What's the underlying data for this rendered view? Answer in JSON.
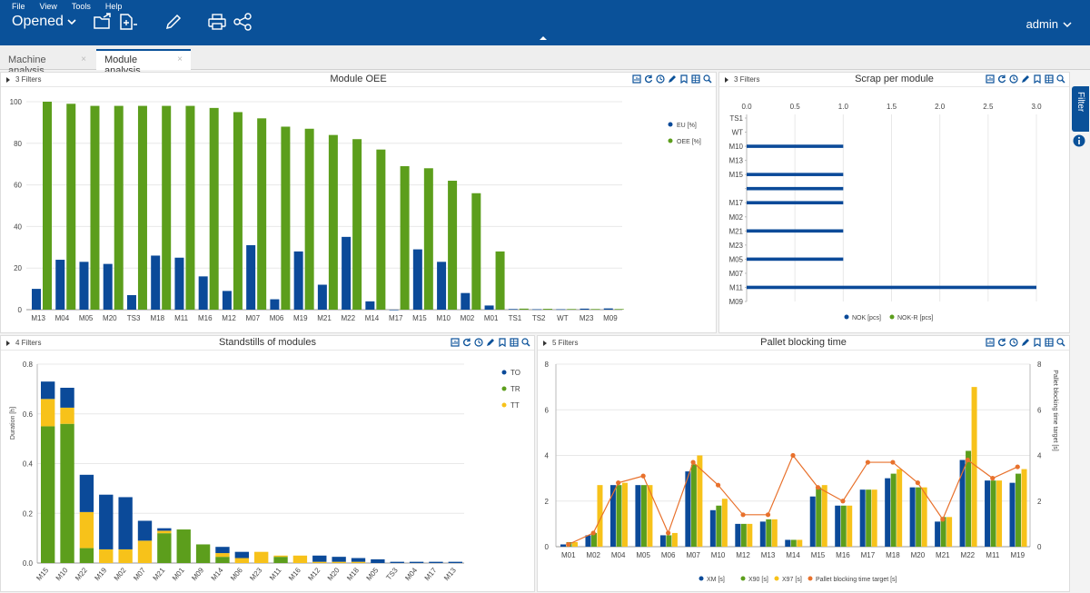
{
  "menu": {
    "file": "File",
    "view": "View",
    "tools": "Tools",
    "help": "Help"
  },
  "toolbar": {
    "opened_label": "Opened",
    "user": "admin"
  },
  "tabs": [
    {
      "label": "Machine analysis",
      "close": "×"
    },
    {
      "label": "Module analysis",
      "close": "×"
    }
  ],
  "filter_tab": {
    "label": "Filter"
  },
  "colors": {
    "brand": "#0a5199",
    "blue": "#0b4a99",
    "green": "#5c9e1c",
    "yellow": "#f7c21a",
    "orange": "#e8712c"
  },
  "panels": {
    "oee": {
      "filters": "3 Filters",
      "title": "Module OEE"
    },
    "scrap": {
      "filters": "3 Filters",
      "title": "Scrap per module"
    },
    "standstill": {
      "filters": "4 Filters",
      "title": "Standstills of modules"
    },
    "pallet": {
      "filters": "5 Filters",
      "title": "Pallet blocking time"
    }
  },
  "chart_data": [
    {
      "type": "bar",
      "categories": [
        "M13",
        "M04",
        "M05",
        "M20",
        "TS3",
        "M18",
        "M11",
        "M16",
        "M12",
        "M07",
        "M06",
        "M19",
        "M21",
        "M22",
        "M14",
        "M17",
        "M15",
        "M10",
        "M02",
        "M01",
        "TS1",
        "TS2",
        "WT",
        "M23",
        "M09"
      ],
      "series": [
        {
          "name": "EU [%]",
          "values": [
            10,
            24,
            23,
            22,
            7,
            26,
            25,
            16,
            9,
            31,
            5,
            28,
            12,
            35,
            4,
            0,
            29,
            23,
            8,
            2,
            0.3,
            0.2,
            0.2,
            0.5,
            0.6
          ]
        },
        {
          "name": "OEE [%]",
          "values": [
            100,
            99,
            98,
            98,
            98,
            98,
            98,
            97,
            95,
            92,
            88,
            87,
            84,
            82,
            77,
            69,
            68,
            62,
            56,
            28,
            0.5,
            0.4,
            0.3,
            0.3,
            0.3
          ]
        }
      ],
      "ylim": [
        0,
        100
      ],
      "yticks": [
        0,
        20,
        40,
        60,
        80,
        100
      ],
      "legend": "top-right",
      "grid": true
    },
    {
      "type": "bar",
      "orientation": "horizontal",
      "categories": [
        "TS1",
        "WT",
        "M10",
        "M13",
        "M15",
        "",
        "M17",
        "M02",
        "M21",
        "M23",
        "M05",
        "M07",
        "M11",
        "M09"
      ],
      "series": [
        {
          "name": "NOK [pcs]",
          "values": [
            0,
            0,
            1,
            0,
            1,
            1,
            1,
            0,
            1,
            0,
            1,
            0,
            3,
            0
          ]
        },
        {
          "name": "NOK-R [pcs]",
          "values": [
            0,
            0,
            0,
            0,
            0,
            0,
            0,
            0,
            0,
            0,
            0,
            0,
            0,
            0
          ]
        }
      ],
      "xlim": [
        0,
        3
      ],
      "xticks": [
        "0.0",
        "0.5",
        "1.0",
        "1.5",
        "2.0",
        "2.5",
        "3.0"
      ],
      "legend": "bottom",
      "grid": true
    },
    {
      "type": "bar",
      "stacked": true,
      "categories": [
        "M15",
        "M10",
        "M22",
        "M19",
        "M02",
        "M07",
        "M21",
        "M01",
        "M09",
        "M14",
        "M06",
        "M23",
        "M11",
        "M16",
        "M12",
        "M20",
        "M18",
        "M05",
        "TS3",
        "M04",
        "M17",
        "M13"
      ],
      "series": [
        {
          "name": "TO",
          "values": [
            0.07,
            0.08,
            0.15,
            0.22,
            0.21,
            0.08,
            0.01,
            0,
            0,
            0.025,
            0.025,
            0,
            0,
            0,
            0.025,
            0.02,
            0.015,
            0.015,
            0.005,
            0.005,
            0.005,
            0.005
          ]
        },
        {
          "name": "TR",
          "values": [
            0.55,
            0.56,
            0.06,
            0,
            0,
            0,
            0.12,
            0.135,
            0.075,
            0.025,
            0,
            0,
            0.025,
            0,
            0,
            0,
            0,
            0,
            0,
            0,
            0,
            0
          ]
        },
        {
          "name": "TT",
          "values": [
            0.11,
            0.065,
            0.145,
            0.055,
            0.055,
            0.09,
            0.01,
            0,
            0,
            0.015,
            0.02,
            0.045,
            0.005,
            0.03,
            0.005,
            0.005,
            0.005,
            0,
            0,
            0,
            0,
            0
          ]
        }
      ],
      "ylabel": "Duration [h]",
      "ylim": [
        0,
        0.8
      ],
      "yticks": [
        "0.0",
        "0.2",
        "0.4",
        "0.6",
        "0.8"
      ],
      "legend": "top-right",
      "grid": true
    },
    {
      "type": "bar",
      "categories": [
        "M01",
        "M02",
        "M04",
        "M05",
        "M06",
        "M07",
        "M10",
        "M12",
        "M13",
        "M14",
        "M15",
        "M16",
        "M17",
        "M18",
        "M20",
        "M21",
        "M22",
        "M11",
        "M19"
      ],
      "series": [
        {
          "name": "XM [s]",
          "values": [
            0.1,
            0.5,
            2.7,
            2.7,
            0.5,
            3.3,
            1.6,
            1.0,
            1.1,
            0.3,
            2.2,
            1.8,
            2.5,
            3.0,
            2.6,
            1.1,
            3.8,
            2.9,
            2.8
          ]
        },
        {
          "name": "X90 [s]",
          "values": [
            0.2,
            0.6,
            2.7,
            2.7,
            0.5,
            3.6,
            1.8,
            1.0,
            1.2,
            0.3,
            2.6,
            1.8,
            2.5,
            3.2,
            2.6,
            1.3,
            4.2,
            2.9,
            3.2
          ]
        },
        {
          "name": "X97 [s]",
          "values": [
            0.2,
            2.7,
            2.8,
            2.7,
            0.6,
            4.0,
            2.1,
            1.0,
            1.2,
            0.3,
            2.7,
            1.8,
            2.5,
            3.4,
            2.6,
            1.3,
            7.0,
            2.9,
            3.4
          ]
        },
        {
          "name": "Pallet blocking time target [s]",
          "type": "line",
          "values": [
            0.1,
            0.6,
            2.8,
            3.1,
            0.6,
            3.7,
            2.7,
            1.4,
            1.4,
            4.0,
            2.6,
            2.0,
            3.7,
            3.7,
            2.8,
            1.2,
            3.8,
            3.0,
            3.5
          ]
        }
      ],
      "ylim": [
        0,
        8
      ],
      "yticks": [
        "0",
        "2",
        "4",
        "6",
        "8"
      ],
      "y2label": "Pallet blocking time target [s]",
      "y2lim": [
        0,
        8
      ],
      "legend": "bottom",
      "grid": true
    }
  ]
}
